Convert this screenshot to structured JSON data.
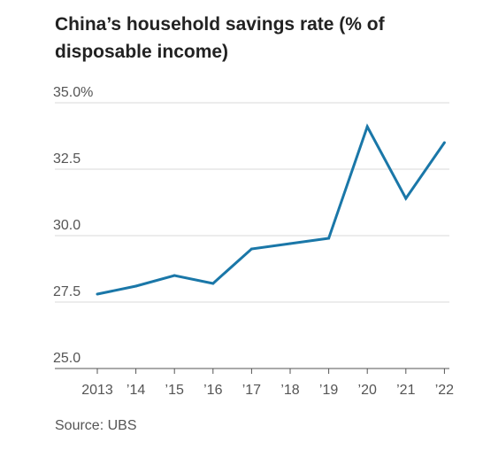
{
  "chart_data": {
    "type": "line",
    "title": "China’s household savings rate (% of disposable income)",
    "source": "Source: UBS",
    "categories": [
      "2013",
      "’14",
      "’15",
      "’16",
      "’17",
      "’18",
      "’19",
      "’20",
      "’21",
      "’22"
    ],
    "y_tick_labels": [
      "35.0%",
      "32.5",
      "30.0",
      "27.5",
      "25.0"
    ],
    "y_ticks": [
      35.0,
      32.5,
      30.0,
      27.5,
      25.0
    ],
    "ylim": [
      25.0,
      35.0
    ],
    "series": [
      {
        "values": [
          27.8,
          28.1,
          28.5,
          28.2,
          29.5,
          29.7,
          29.9,
          34.1,
          31.4,
          33.5
        ]
      }
    ],
    "line_color": "#1a77a8",
    "grid": true
  }
}
